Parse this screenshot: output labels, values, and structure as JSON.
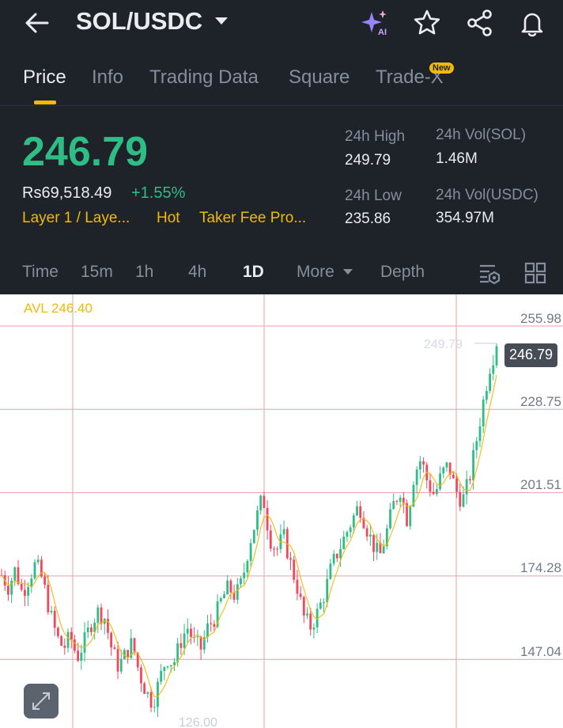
{
  "header": {
    "pair": "SOL/USDC",
    "icons": [
      "back-arrow-icon",
      "ai-sparkle-icon",
      "star-icon",
      "share-icon",
      "bell-icon"
    ]
  },
  "tabs": [
    {
      "label": "Price",
      "active": true
    },
    {
      "label": "Info"
    },
    {
      "label": "Trading Data"
    },
    {
      "label": "Square"
    },
    {
      "label": "Trade-X",
      "badge": "New"
    }
  ],
  "ticker": {
    "price": "246.79",
    "fiat": "Rs69,518.49",
    "change": "+1.55%",
    "tags": [
      "Layer 1 / Laye...",
      "Hot",
      "Taker Fee Pro..."
    ],
    "high_label": "24h High",
    "high": "249.79",
    "low_label": "24h Low",
    "low": "235.86",
    "vol_base_label": "24h Vol(SOL)",
    "vol_base": "1.46M",
    "vol_quote_label": "24h Vol(USDC)",
    "vol_quote": "354.97M"
  },
  "intervals": {
    "items": [
      "Time",
      "15m",
      "1h",
      "4h",
      "1D",
      "More",
      "Depth"
    ],
    "active": "1D"
  },
  "chart": {
    "avl": "AVL 246.40",
    "y_ticks": [
      "255.98",
      "228.75",
      "201.51",
      "174.28",
      "147.04"
    ],
    "high_marker": "249.79",
    "low_marker": "126.00",
    "last_price": "246.79"
  },
  "colors": {
    "up": "#2ebd85",
    "down": "#f6465d",
    "accent": "#f0b90b",
    "background": "#1e2329"
  },
  "chart_data": {
    "type": "candlestick",
    "interval": "1D",
    "pair": "SOL/USDC",
    "ylim": [
      126.0,
      255.98
    ],
    "y_ticks": [
      255.98,
      228.75,
      201.51,
      174.28,
      147.04
    ],
    "high_marker": 249.79,
    "low_marker": 126.0,
    "last": 246.79,
    "avl": 246.4,
    "close_path": [
      172,
      168,
      174,
      166,
      171,
      176,
      170,
      160,
      152,
      148,
      152,
      145,
      150,
      156,
      160,
      158,
      148,
      142,
      146,
      150,
      140,
      134,
      130,
      138,
      145,
      143,
      150,
      155,
      150,
      148,
      155,
      158,
      164,
      168,
      165,
      170,
      182,
      190,
      198,
      184,
      180,
      185,
      176,
      168,
      158,
      155,
      160,
      166,
      175,
      180,
      185,
      190,
      195,
      188,
      182,
      178,
      186,
      195,
      200,
      190,
      205,
      210,
      202,
      198,
      205,
      208,
      200,
      196,
      203,
      215,
      228,
      240,
      246.79
    ]
  }
}
